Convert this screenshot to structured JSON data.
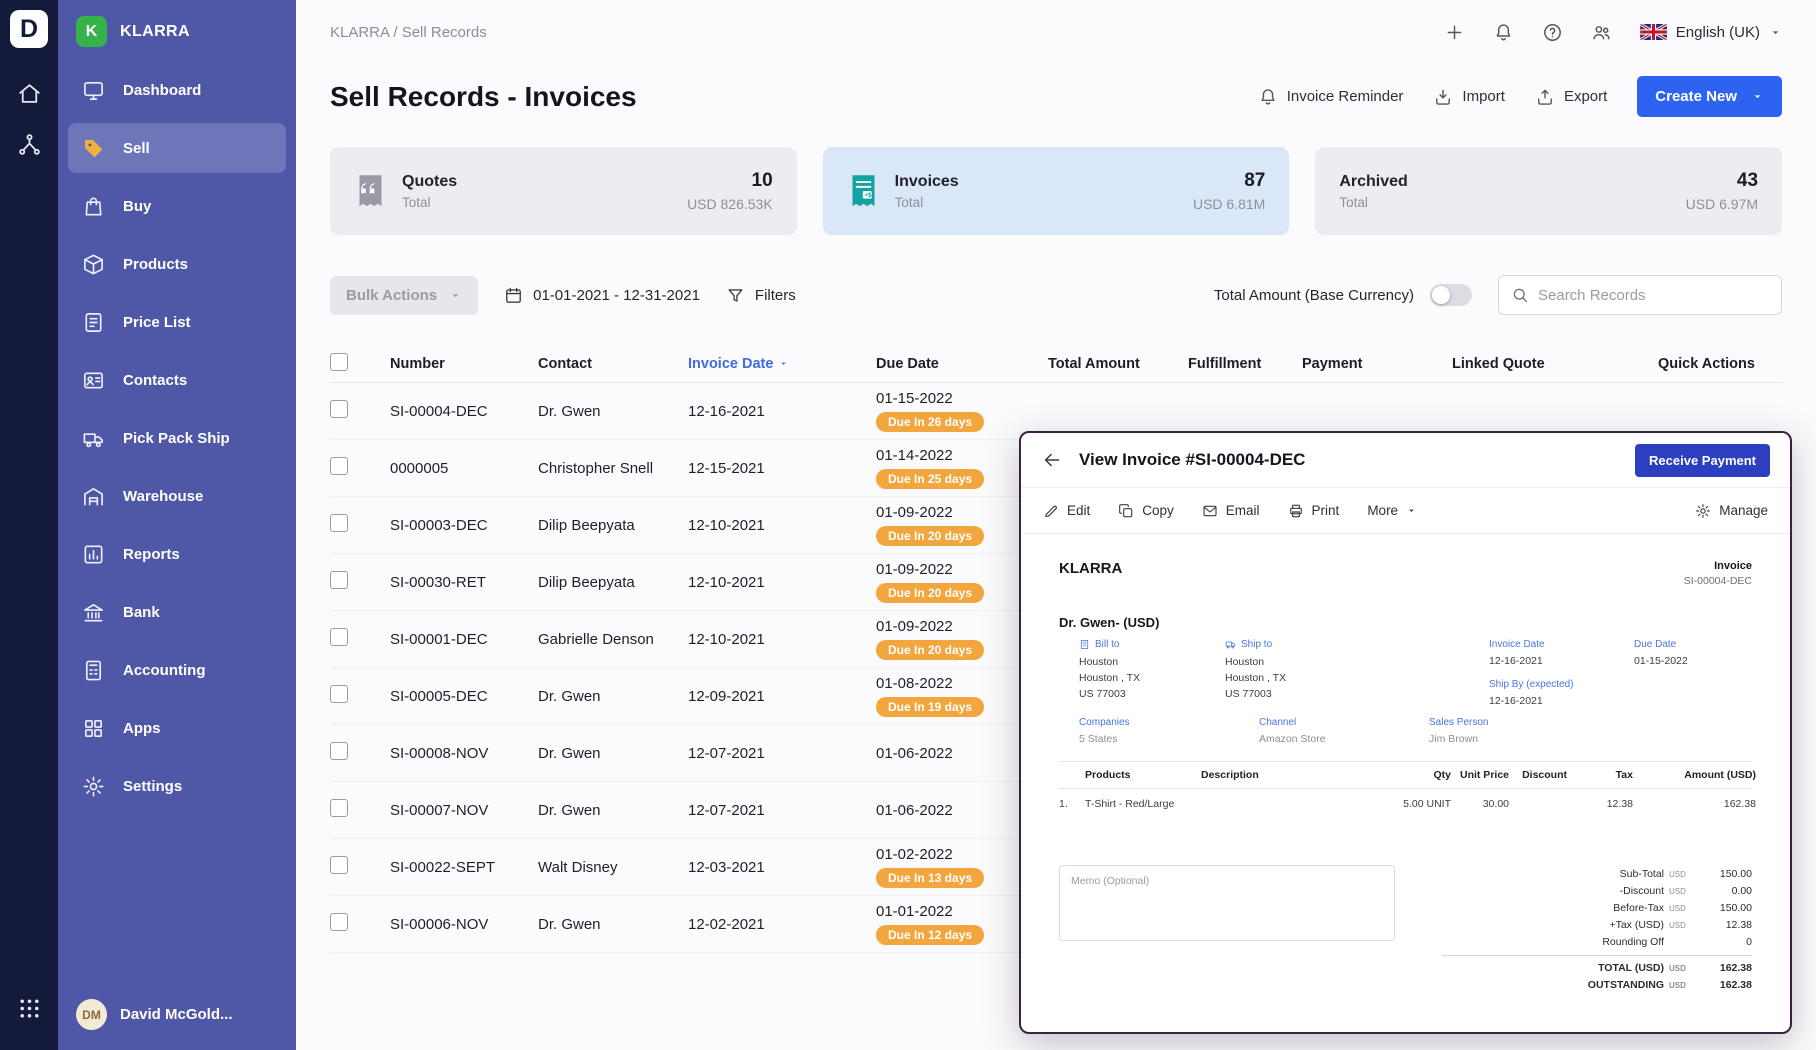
{
  "colors": {
    "rail": "#131a3a",
    "sidebar": "#4f58a7",
    "brand_green": "#35b34a",
    "accent_blue": "#2d63f0",
    "deep_blue": "#2b3fc0",
    "badge_orange": "#f2a63d",
    "card_active": "#d9e7f9",
    "link_blue": "#4a74e8",
    "overlay_border": "#3e2142",
    "sell_icon": "#f0b03f",
    "teal": "#12a3a0"
  },
  "app": {
    "logo_letter": "D",
    "brand": "KLARRA",
    "brand_avatar_letter": "K"
  },
  "sidebar": {
    "items": [
      {
        "label": "Dashboard",
        "icon": "dashboard",
        "active": false
      },
      {
        "label": "Sell",
        "icon": "sell",
        "active": true
      },
      {
        "label": "Buy",
        "icon": "buy",
        "active": false
      },
      {
        "label": "Products",
        "icon": "products",
        "active": false
      },
      {
        "label": "Price List",
        "icon": "price-list",
        "active": false
      },
      {
        "label": "Contacts",
        "icon": "contacts",
        "active": false
      },
      {
        "label": "Pick Pack Ship",
        "icon": "pick-pack-ship",
        "active": false
      },
      {
        "label": "Warehouse",
        "icon": "warehouse",
        "active": false
      },
      {
        "label": "Reports",
        "icon": "reports",
        "active": false
      },
      {
        "label": "Bank",
        "icon": "bank",
        "active": false
      },
      {
        "label": "Accounting",
        "icon": "accounting",
        "active": false
      },
      {
        "label": "Apps",
        "icon": "apps",
        "active": false
      },
      {
        "label": "Settings",
        "icon": "settings",
        "active": false
      }
    ],
    "user": {
      "name": "David McGold...",
      "avatar_initials": "DM"
    }
  },
  "topbar": {
    "breadcrumb": "KLARRA / Sell Records",
    "language": "English (UK)"
  },
  "page": {
    "title": "Sell Records - Invoices",
    "actions": {
      "invoice_reminder": "Invoice Reminder",
      "import": "Import",
      "export": "Export",
      "create_new": "Create New"
    }
  },
  "stats": [
    {
      "label": "Quotes",
      "sublabel": "Total",
      "count": "10",
      "amount": "USD 826.53K",
      "icon": "quotes",
      "active": false
    },
    {
      "label": "Invoices",
      "sublabel": "Total",
      "count": "87",
      "amount": "USD 6.81M",
      "icon": "invoice-card",
      "active": true
    },
    {
      "label": "Archived",
      "sublabel": "Total",
      "count": "43",
      "amount": "USD 6.97M",
      "icon": "",
      "active": false
    }
  ],
  "filters": {
    "bulk_actions": "Bulk Actions",
    "date_range": "01-01-2021 - 12-31-2021",
    "filters_label": "Filters",
    "toggle_label": "Total Amount (Base Currency)",
    "toggle_on": false,
    "search_placeholder": "Search Records"
  },
  "table": {
    "columns": [
      "Number",
      "Contact",
      "Invoice Date",
      "Due Date",
      "Total Amount",
      "Fulfillment",
      "Payment",
      "Linked Quote",
      "Quick Actions"
    ],
    "sort_column": "Invoice Date",
    "rows": [
      {
        "number": "SI-00004-DEC",
        "contact": "Dr. Gwen",
        "invoice_date": "12-16-2021",
        "due_date": "01-15-2022",
        "due_badge": "Due In 26 days"
      },
      {
        "number": "0000005",
        "contact": "Christopher Snell",
        "invoice_date": "12-15-2021",
        "due_date": "01-14-2022",
        "due_badge": "Due In 25 days"
      },
      {
        "number": "SI-00003-DEC",
        "contact": "Dilip Beepyata",
        "invoice_date": "12-10-2021",
        "due_date": "01-09-2022",
        "due_badge": "Due In 20 days"
      },
      {
        "number": "SI-00030-RET",
        "contact": "Dilip Beepyata",
        "invoice_date": "12-10-2021",
        "due_date": "01-09-2022",
        "due_badge": "Due In 20 days"
      },
      {
        "number": "SI-00001-DEC",
        "contact": "Gabrielle Denson",
        "invoice_date": "12-10-2021",
        "due_date": "01-09-2022",
        "due_badge": "Due In 20 days"
      },
      {
        "number": "SI-00005-DEC",
        "contact": "Dr. Gwen",
        "invoice_date": "12-09-2021",
        "due_date": "01-08-2022",
        "due_badge": "Due In 19 days"
      },
      {
        "number": "SI-00008-NOV",
        "contact": "Dr. Gwen",
        "invoice_date": "12-07-2021",
        "due_date": "01-06-2022",
        "due_badge": ""
      },
      {
        "number": "SI-00007-NOV",
        "contact": "Dr. Gwen",
        "invoice_date": "12-07-2021",
        "due_date": "01-06-2022",
        "due_badge": ""
      },
      {
        "number": "SI-00022-SEPT",
        "contact": "Walt Disney",
        "invoice_date": "12-03-2021",
        "due_date": "01-02-2022",
        "due_badge": "Due In 13 days"
      },
      {
        "number": "SI-00006-NOV",
        "contact": "Dr. Gwen",
        "invoice_date": "12-02-2021",
        "due_date": "01-01-2022",
        "due_badge": "Due In 12 days"
      }
    ]
  },
  "overlay": {
    "title": "View Invoice #SI-00004-DEC",
    "receive_payment": "Receive Payment",
    "toolbar": [
      {
        "label": "Edit",
        "icon": "edit"
      },
      {
        "label": "Copy",
        "icon": "copy"
      },
      {
        "label": "Email",
        "icon": "email"
      },
      {
        "label": "Print",
        "icon": "print"
      },
      {
        "label": "More",
        "icon": "",
        "caret": true
      },
      {
        "label": "Manage",
        "icon": "gear",
        "right": true
      }
    ],
    "invoice": {
      "company": "KLARRA",
      "doc_type": "Invoice",
      "doc_number": "SI-00004-DEC",
      "contact": "Dr. Gwen- (USD)",
      "bill_to_label": "Bill to",
      "bill_to": "Houston\nHouston , TX\nUS 77003",
      "ship_to_label": "Ship to",
      "ship_to": "Houston\nHouston , TX\nUS 77003",
      "invoice_date_label": "Invoice Date",
      "invoice_date": "12-16-2021",
      "due_date_label": "Due Date",
      "due_date": "01-15-2022",
      "ship_by_label": "Ship By (expected)",
      "ship_by": "12-16-2021",
      "companies_label": "Companies",
      "companies": "5 States",
      "channel_label": "Channel",
      "channel": "Amazon Store",
      "sales_person_label": "Sales Person",
      "sales_person": "Jim Brown",
      "items_columns": [
        "Products",
        "Description",
        "Qty",
        "Unit Price",
        "Discount",
        "Tax",
        "Amount (USD)"
      ],
      "items": [
        {
          "index": "1.",
          "product": "T-Shirt - Red/Large",
          "description": "",
          "qty": "5.00",
          "uom": "UNIT",
          "unit_price": "30.00",
          "discount": "",
          "tax": "12.38",
          "amount": "162.38"
        }
      ],
      "memo_placeholder": "Memo (Optional)",
      "totals": [
        {
          "label": "Sub-Total",
          "currency": "USD",
          "value": "150.00"
        },
        {
          "label": "-Discount",
          "currency": "USD",
          "value": "0.00"
        },
        {
          "label": "Before-Tax",
          "currency": "USD",
          "value": "150.00"
        },
        {
          "label": "+Tax (USD)",
          "currency": "USD",
          "value": "12.38"
        },
        {
          "label": "Rounding Off",
          "currency": "",
          "value": "0"
        },
        {
          "label": "TOTAL (USD)",
          "currency": "USD",
          "value": "162.38",
          "bold": true,
          "divider": true
        },
        {
          "label": "OUTSTANDING",
          "currency": "USD",
          "value": "162.38",
          "bold": true
        }
      ]
    }
  }
}
